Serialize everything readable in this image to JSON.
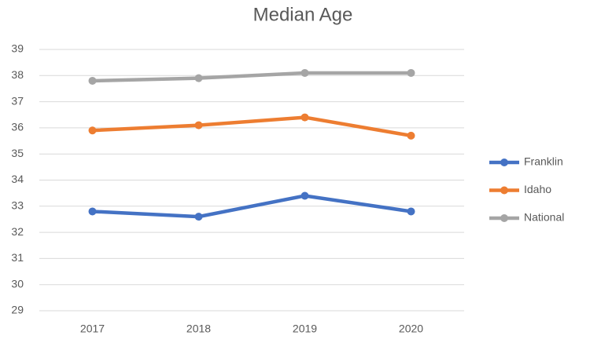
{
  "chart_data": {
    "type": "line",
    "title": "Median Age",
    "categories": [
      "2017",
      "2018",
      "2019",
      "2020"
    ],
    "series": [
      {
        "name": "Franklin",
        "color": "#4472c4",
        "values": [
          32.8,
          32.6,
          33.4,
          32.8
        ]
      },
      {
        "name": "Idaho",
        "color": "#ed7d31",
        "values": [
          35.9,
          36.1,
          36.4,
          35.7
        ]
      },
      {
        "name": "National",
        "color": "#a5a5a5",
        "values": [
          37.8,
          37.9,
          38.1,
          38.1
        ]
      }
    ],
    "ylim": [
      29,
      39
    ],
    "yticks": [
      29,
      30,
      31,
      32,
      33,
      34,
      35,
      36,
      37,
      38,
      39
    ],
    "grid": true,
    "legend": "right"
  }
}
